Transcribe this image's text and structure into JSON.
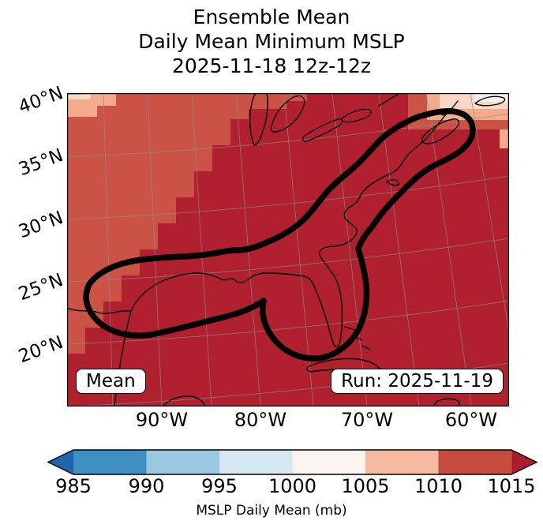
{
  "chart_data": {
    "type": "filled-contour-map",
    "title_lines": [
      "Ensemble Mean",
      "Daily Mean Minimum MSLP",
      "2025-11-18 12z-12z"
    ],
    "x_tick_labels": [
      "90°W",
      "80°W",
      "70°W",
      "60°W"
    ],
    "y_tick_labels": [
      "40°N",
      "35°N",
      "30°N",
      "25°N",
      "20°N"
    ],
    "annotations": {
      "mean_box": "Mean",
      "run_box": "Run: 2025-11-19"
    },
    "colorbar": {
      "label": "MSLP Daily Mean (mb)",
      "units": "mb",
      "ticks": [
        985,
        990,
        995,
        1000,
        1005,
        1010,
        1015
      ],
      "segment_colors": [
        "#3f8ec4",
        "#9ac8e0",
        "#d7e8f2",
        "#faf4f1",
        "#f5b9a0",
        "#c64b3c"
      ],
      "under_color": "#2166ac",
      "over_color": "#a91e2c"
    },
    "map_fill_bins_visible": {
      "dominant_region_mb": "> 1015",
      "northwest_region_mb": "1010-1015",
      "corner_patches_mb": "1000-1010"
    },
    "colors": {
      "map_high": "#b0202e",
      "map_mid": "#ca5345",
      "map_pale": "#f2ab8b",
      "map_paler": "#f9d7c5",
      "map_white": "#f7f1ec",
      "grid": "#8c8c8c",
      "coast": "#000000",
      "contour": "#000000",
      "frame": "#000000"
    }
  }
}
